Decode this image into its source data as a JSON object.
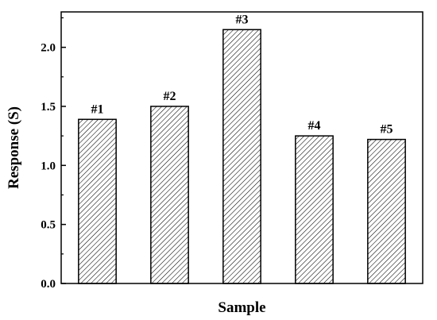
{
  "chart_data": {
    "type": "bar",
    "title": "",
    "xlabel": "Sample",
    "ylabel": "Response (S)",
    "categories": [
      "#1",
      "#2",
      "#3",
      "#4",
      "#5"
    ],
    "values": [
      1.39,
      1.5,
      2.15,
      1.25,
      1.22
    ],
    "data_labels": [
      "#1",
      "#2",
      "#3",
      "#4",
      "#5"
    ],
    "ylim": [
      0,
      2.3
    ],
    "yticks": [
      0.0,
      0.5,
      1.0,
      1.5,
      2.0
    ],
    "ytick_labels": [
      "0.0",
      "0.5",
      "1.0",
      "1.5",
      "2.0"
    ],
    "grid": false,
    "legend": "none",
    "bar_fill": "hatched",
    "colors": {
      "bar_stroke": "#000000",
      "hatch": "#000000",
      "background": "#ffffff"
    }
  }
}
